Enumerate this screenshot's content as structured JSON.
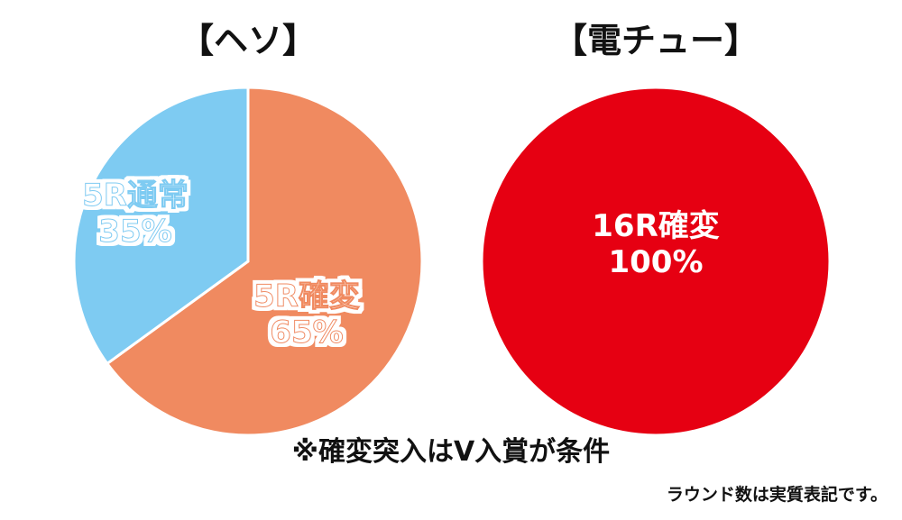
{
  "chart_data": [
    {
      "type": "pie",
      "title": "【ヘソ】",
      "series": [
        {
          "label_name": "5R確変",
          "value_text": "65%",
          "value": 65,
          "color": "#f08a60"
        },
        {
          "label_name": "5R通常",
          "value_text": "35%",
          "value": 35,
          "color": "#7ecbf2"
        }
      ]
    },
    {
      "type": "pie",
      "title": "【電チュー】",
      "series": [
        {
          "label_name": "16R確変",
          "value_text": "100%",
          "value": 100,
          "color": "#e60012"
        }
      ]
    }
  ],
  "notes": {
    "condition": "※確変突入はV入賞が条件",
    "footer": "ラウンド数は実質表記です。"
  }
}
